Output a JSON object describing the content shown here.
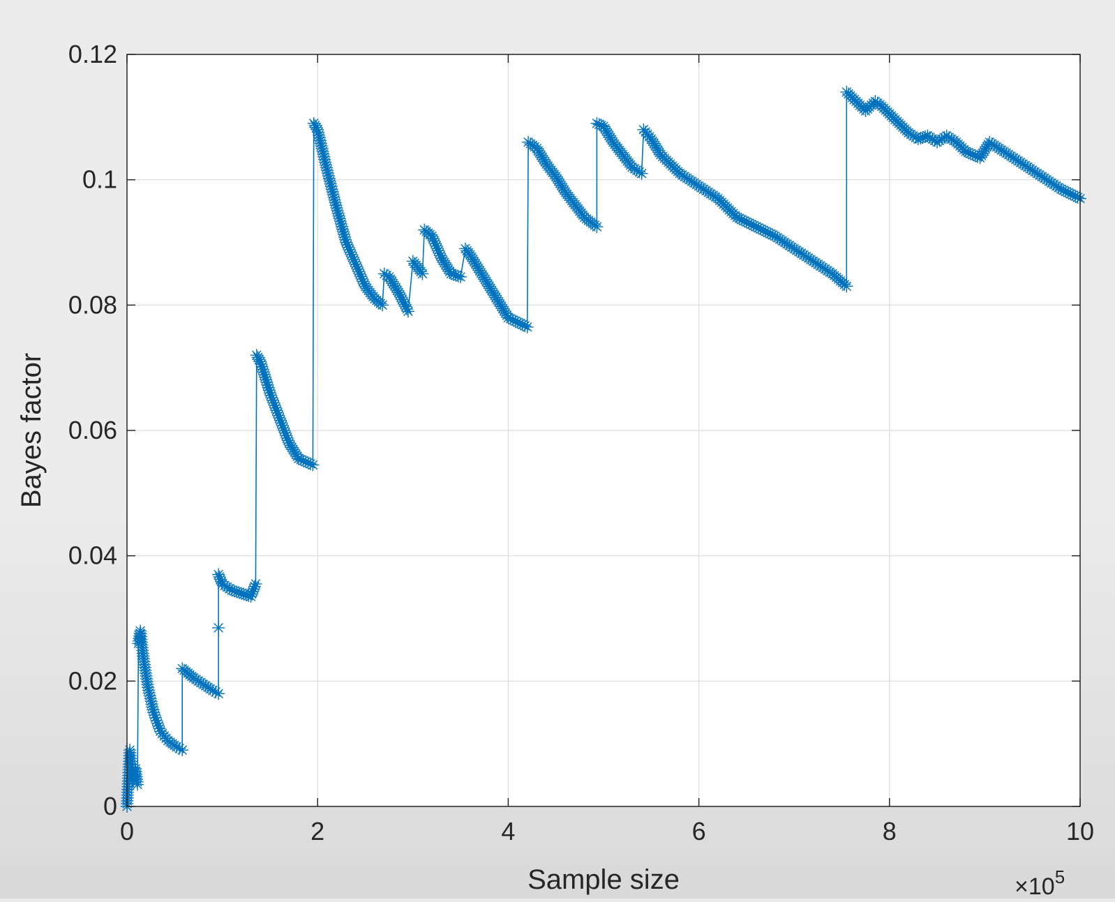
{
  "chart_data": {
    "type": "scatter",
    "title": "",
    "xlabel": "Sample size",
    "ylabel": "Bayes factor",
    "x_multiplier": "×10",
    "x_multiplier_exp": "5",
    "xlim": [
      0,
      10
    ],
    "ylim": [
      0,
      0.12
    ],
    "xticks": [
      0,
      2,
      4,
      6,
      8,
      10
    ],
    "xtick_labels": [
      "0",
      "2",
      "4",
      "6",
      "8",
      "10"
    ],
    "yticks": [
      0,
      0.02,
      0.04,
      0.06,
      0.08,
      0.1,
      0.12
    ],
    "ytick_labels": [
      "0",
      "0.02",
      "0.04",
      "0.06",
      "0.08",
      "0.1",
      "0.12"
    ],
    "grid": true,
    "marker": "asterisk",
    "series_color": "#0072BD",
    "segments": [
      [
        [
          0.0,
          0.0
        ],
        [
          0.03,
          0.009
        ],
        [
          0.06,
          0.004
        ],
        [
          0.09,
          0.006
        ],
        [
          0.11,
          0.0035
        ]
      ],
      [
        [
          0.12,
          0.026
        ],
        [
          0.14,
          0.028
        ],
        [
          0.17,
          0.024
        ],
        [
          0.22,
          0.019
        ],
        [
          0.28,
          0.015
        ],
        [
          0.35,
          0.012
        ],
        [
          0.43,
          0.0105
        ],
        [
          0.52,
          0.0095
        ],
        [
          0.58,
          0.009
        ]
      ],
      [
        [
          0.58,
          0.022
        ],
        [
          0.62,
          0.0215
        ],
        [
          0.7,
          0.0205
        ],
        [
          0.8,
          0.0195
        ],
        [
          0.9,
          0.0185
        ],
        [
          0.96,
          0.018
        ]
      ],
      [
        [
          0.96,
          0.0285
        ]
      ],
      [
        [
          0.96,
          0.037
        ],
        [
          1.0,
          0.0355
        ],
        [
          1.1,
          0.0345
        ],
        [
          1.2,
          0.034
        ],
        [
          1.3,
          0.0335
        ],
        [
          1.35,
          0.0355
        ]
      ],
      [
        [
          1.36,
          0.072
        ],
        [
          1.4,
          0.071
        ],
        [
          1.5,
          0.066
        ],
        [
          1.6,
          0.062
        ],
        [
          1.7,
          0.058
        ],
        [
          1.8,
          0.0555
        ],
        [
          1.95,
          0.0545
        ]
      ],
      [
        [
          1.96,
          0.109
        ],
        [
          2.0,
          0.108
        ],
        [
          2.1,
          0.1015
        ],
        [
          2.2,
          0.0955
        ],
        [
          2.3,
          0.09
        ],
        [
          2.4,
          0.0865
        ],
        [
          2.5,
          0.083
        ],
        [
          2.6,
          0.081
        ],
        [
          2.68,
          0.08
        ]
      ],
      [
        [
          2.7,
          0.085
        ],
        [
          2.75,
          0.0845
        ],
        [
          2.85,
          0.082
        ],
        [
          2.95,
          0.079
        ]
      ],
      [
        [
          3.0,
          0.087
        ],
        [
          3.05,
          0.086
        ],
        [
          3.1,
          0.085
        ]
      ],
      [
        [
          3.12,
          0.092
        ],
        [
          3.2,
          0.091
        ],
        [
          3.3,
          0.0875
        ],
        [
          3.4,
          0.085
        ],
        [
          3.5,
          0.0845
        ]
      ],
      [
        [
          3.55,
          0.089
        ],
        [
          3.6,
          0.088
        ],
        [
          3.7,
          0.0855
        ],
        [
          3.8,
          0.083
        ],
        [
          3.9,
          0.0805
        ],
        [
          4.0,
          0.078
        ],
        [
          4.2,
          0.0765
        ]
      ],
      [
        [
          4.21,
          0.106
        ],
        [
          4.3,
          0.105
        ],
        [
          4.4,
          0.1025
        ],
        [
          4.5,
          0.1005
        ],
        [
          4.6,
          0.098
        ],
        [
          4.7,
          0.096
        ],
        [
          4.8,
          0.094
        ],
        [
          4.93,
          0.0925
        ]
      ],
      [
        [
          4.93,
          0.109
        ],
        [
          5.0,
          0.1085
        ],
        [
          5.1,
          0.106
        ],
        [
          5.2,
          0.104
        ],
        [
          5.3,
          0.102
        ],
        [
          5.4,
          0.101
        ]
      ],
      [
        [
          5.42,
          0.108
        ],
        [
          5.5,
          0.1065
        ],
        [
          5.6,
          0.104
        ],
        [
          5.7,
          0.1025
        ],
        [
          5.8,
          0.101
        ],
        [
          6.0,
          0.099
        ],
        [
          6.2,
          0.097
        ],
        [
          6.4,
          0.094
        ],
        [
          6.6,
          0.0925
        ],
        [
          6.8,
          0.091
        ],
        [
          7.0,
          0.089
        ],
        [
          7.2,
          0.087
        ],
        [
          7.4,
          0.085
        ],
        [
          7.55,
          0.083
        ]
      ],
      [
        [
          7.55,
          0.114
        ],
        [
          7.65,
          0.1125
        ],
        [
          7.75,
          0.111
        ],
        [
          7.85,
          0.1125
        ],
        [
          7.9,
          0.112
        ],
        [
          8.0,
          0.1105
        ],
        [
          8.1,
          0.109
        ],
        [
          8.2,
          0.1075
        ],
        [
          8.3,
          0.1065
        ],
        [
          8.4,
          0.107
        ],
        [
          8.5,
          0.106
        ],
        [
          8.6,
          0.107
        ],
        [
          8.7,
          0.106
        ],
        [
          8.8,
          0.1045
        ],
        [
          8.95,
          0.1035
        ],
        [
          9.05,
          0.106
        ],
        [
          9.2,
          0.1045
        ],
        [
          9.4,
          0.1025
        ],
        [
          9.6,
          0.1005
        ],
        [
          9.8,
          0.0985
        ],
        [
          10.0,
          0.097
        ]
      ]
    ]
  }
}
